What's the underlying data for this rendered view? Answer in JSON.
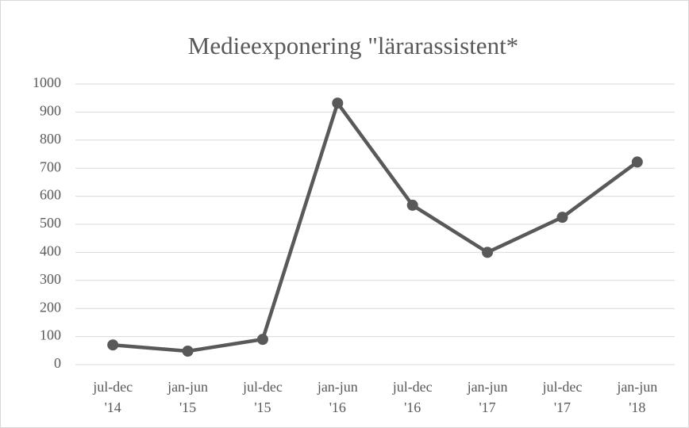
{
  "chart_data": {
    "type": "line",
    "title": "Medieexponering \"lärarassistent*",
    "categories": [
      "jul-dec '14",
      "jan-jun '15",
      "jul-dec '15",
      "jan-jun '16",
      "jul-dec '16",
      "jan-jun '17",
      "jul-dec '17",
      "jan-jun '18"
    ],
    "values": [
      70,
      48,
      90,
      932,
      568,
      400,
      525,
      722
    ],
    "color": "#595959",
    "ylim": [
      0,
      1000
    ],
    "yticks": [
      0,
      100,
      200,
      300,
      400,
      500,
      600,
      700,
      800,
      900,
      1000
    ],
    "grid": true
  }
}
